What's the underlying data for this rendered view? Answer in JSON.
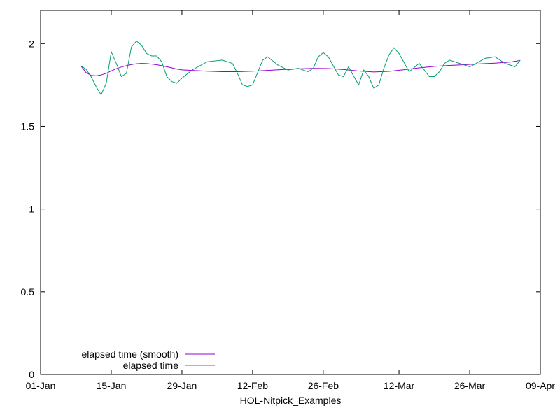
{
  "chart_data": {
    "type": "line",
    "title": "",
    "xlabel": "HOL-Nitpick_Examples",
    "ylabel": "",
    "x_range": [
      "2024-01-01",
      "2024-04-09"
    ],
    "ylim": [
      0,
      2.2
    ],
    "x_ticks": [
      {
        "date": "2024-01-01",
        "label": "01-Jan"
      },
      {
        "date": "2024-01-15",
        "label": "15-Jan"
      },
      {
        "date": "2024-01-29",
        "label": "29-Jan"
      },
      {
        "date": "2024-02-12",
        "label": "12-Feb"
      },
      {
        "date": "2024-02-26",
        "label": "26-Feb"
      },
      {
        "date": "2024-03-12",
        "label": "12-Mar"
      },
      {
        "date": "2024-03-26",
        "label": "26-Mar"
      },
      {
        "date": "2024-04-09",
        "label": "09-Apr"
      }
    ],
    "y_ticks": [
      {
        "value": 0,
        "label": "0"
      },
      {
        "value": 0.5,
        "label": "0.5"
      },
      {
        "value": 1,
        "label": "1"
      },
      {
        "value": 1.5,
        "label": "1.5"
      },
      {
        "value": 2,
        "label": "2"
      }
    ],
    "grid": false,
    "legend_position": "bottom-left",
    "series": [
      {
        "name": "elapsed time (smooth)",
        "color": "#9400d3",
        "points": [
          [
            "2024-01-09",
            1.865
          ],
          [
            "2024-01-10",
            1.825
          ],
          [
            "2024-01-11",
            1.808
          ],
          [
            "2024-01-12",
            1.805
          ],
          [
            "2024-01-13",
            1.81
          ],
          [
            "2024-01-14",
            1.82
          ],
          [
            "2024-01-15",
            1.835
          ],
          [
            "2024-01-16",
            1.848
          ],
          [
            "2024-01-17",
            1.858
          ],
          [
            "2024-01-18",
            1.866
          ],
          [
            "2024-01-19",
            1.873
          ],
          [
            "2024-01-20",
            1.878
          ],
          [
            "2024-01-21",
            1.88
          ],
          [
            "2024-01-22",
            1.879
          ],
          [
            "2024-01-23",
            1.876
          ],
          [
            "2024-01-24",
            1.872
          ],
          [
            "2024-01-25",
            1.866
          ],
          [
            "2024-01-26",
            1.86
          ],
          [
            "2024-01-27",
            1.853
          ],
          [
            "2024-01-28",
            1.846
          ],
          [
            "2024-01-29",
            1.841
          ],
          [
            "2024-01-31",
            1.838
          ],
          [
            "2024-02-03",
            1.833
          ],
          [
            "2024-02-06",
            1.83
          ],
          [
            "2024-02-09",
            1.83
          ],
          [
            "2024-02-12",
            1.833
          ],
          [
            "2024-02-15",
            1.838
          ],
          [
            "2024-02-18",
            1.843
          ],
          [
            "2024-02-21",
            1.847
          ],
          [
            "2024-02-24",
            1.85
          ],
          [
            "2024-02-27",
            1.849
          ],
          [
            "2024-03-01",
            1.843
          ],
          [
            "2024-03-04",
            1.834
          ],
          [
            "2024-03-07",
            1.828
          ],
          [
            "2024-03-10",
            1.832
          ],
          [
            "2024-03-13",
            1.842
          ],
          [
            "2024-03-16",
            1.853
          ],
          [
            "2024-03-19",
            1.862
          ],
          [
            "2024-03-22",
            1.868
          ],
          [
            "2024-03-25",
            1.872
          ],
          [
            "2024-03-28",
            1.877
          ],
          [
            "2024-03-31",
            1.882
          ],
          [
            "2024-04-03",
            1.888
          ],
          [
            "2024-04-05",
            1.898
          ]
        ]
      },
      {
        "name": "elapsed time",
        "color": "#009e73",
        "points": [
          [
            "2024-01-09",
            1.865
          ],
          [
            "2024-01-10",
            1.845
          ],
          [
            "2024-01-11",
            1.8
          ],
          [
            "2024-01-12",
            1.74
          ],
          [
            "2024-01-13",
            1.69
          ],
          [
            "2024-01-14",
            1.76
          ],
          [
            "2024-01-15",
            1.95
          ],
          [
            "2024-01-16",
            1.88
          ],
          [
            "2024-01-17",
            1.8
          ],
          [
            "2024-01-18",
            1.82
          ],
          [
            "2024-01-19",
            1.98
          ],
          [
            "2024-01-20",
            2.015
          ],
          [
            "2024-01-21",
            1.99
          ],
          [
            "2024-01-22",
            1.94
          ],
          [
            "2024-01-23",
            1.925
          ],
          [
            "2024-01-24",
            1.925
          ],
          [
            "2024-01-25",
            1.89
          ],
          [
            "2024-01-26",
            1.8
          ],
          [
            "2024-01-27",
            1.77
          ],
          [
            "2024-01-28",
            1.76
          ],
          [
            "2024-01-29",
            1.79
          ],
          [
            "2024-01-31",
            1.84
          ],
          [
            "2024-02-03",
            1.89
          ],
          [
            "2024-02-06",
            1.9
          ],
          [
            "2024-02-08",
            1.88
          ],
          [
            "2024-02-09",
            1.82
          ],
          [
            "2024-02-10",
            1.75
          ],
          [
            "2024-02-11",
            1.74
          ],
          [
            "2024-02-12",
            1.75
          ],
          [
            "2024-02-14",
            1.9
          ],
          [
            "2024-02-15",
            1.92
          ],
          [
            "2024-02-17",
            1.87
          ],
          [
            "2024-02-19",
            1.84
          ],
          [
            "2024-02-21",
            1.85
          ],
          [
            "2024-02-23",
            1.83
          ],
          [
            "2024-02-24",
            1.85
          ],
          [
            "2024-02-25",
            1.92
          ],
          [
            "2024-02-26",
            1.945
          ],
          [
            "2024-02-27",
            1.92
          ],
          [
            "2024-02-29",
            1.81
          ],
          [
            "2024-03-01",
            1.8
          ],
          [
            "2024-03-02",
            1.86
          ],
          [
            "2024-03-04",
            1.75
          ],
          [
            "2024-03-05",
            1.84
          ],
          [
            "2024-03-06",
            1.8
          ],
          [
            "2024-03-07",
            1.73
          ],
          [
            "2024-03-08",
            1.75
          ],
          [
            "2024-03-09",
            1.85
          ],
          [
            "2024-03-10",
            1.93
          ],
          [
            "2024-03-11",
            1.975
          ],
          [
            "2024-03-12",
            1.94
          ],
          [
            "2024-03-14",
            1.83
          ],
          [
            "2024-03-16",
            1.88
          ],
          [
            "2024-03-18",
            1.8
          ],
          [
            "2024-03-19",
            1.8
          ],
          [
            "2024-03-20",
            1.83
          ],
          [
            "2024-03-21",
            1.88
          ],
          [
            "2024-03-22",
            1.9
          ],
          [
            "2024-03-24",
            1.88
          ],
          [
            "2024-03-26",
            1.86
          ],
          [
            "2024-03-27",
            1.875
          ],
          [
            "2024-03-29",
            1.91
          ],
          [
            "2024-03-31",
            1.92
          ],
          [
            "2024-04-02",
            1.88
          ],
          [
            "2024-04-04",
            1.86
          ],
          [
            "2024-04-05",
            1.9
          ]
        ]
      }
    ]
  }
}
